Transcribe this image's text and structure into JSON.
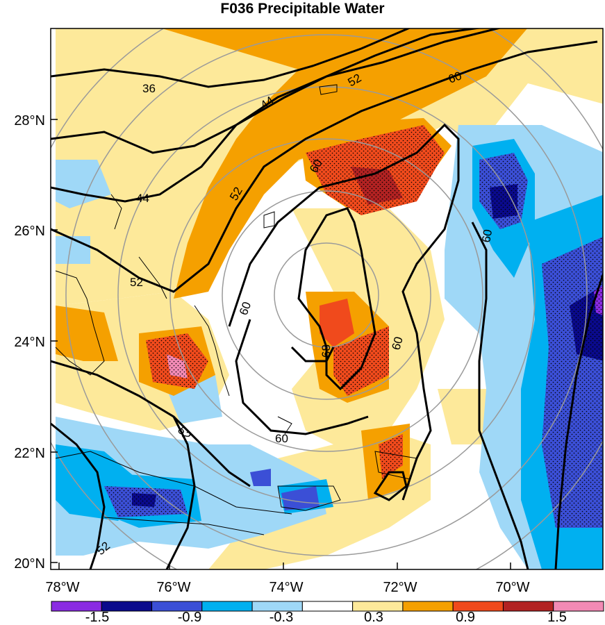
{
  "title": "F036 Precipitable Water",
  "map": {
    "latitude_labels": [
      "28°N",
      "26°N",
      "24°N",
      "22°N",
      "20°N"
    ],
    "longitude_labels": [
      "78°W",
      "76°W",
      "74°W",
      "72°W",
      "70°W"
    ],
    "contour_labels": [
      "36",
      "44",
      "52",
      "60",
      "44",
      "52",
      "60",
      "60",
      "60",
      "68",
      "60",
      "60",
      "52",
      "52",
      "52"
    ],
    "range_rings": "concentric gray circles centered near 24.9°N 73.8°W"
  },
  "colorbar": {
    "labels": [
      "-1.5",
      "-0.9",
      "-0.3",
      "0.3",
      "0.9",
      "1.5"
    ],
    "colors": [
      "#8a2be2",
      "#0a0a8c",
      "#3b4fd6",
      "#00b0f0",
      "#9fd8f7",
      "#ffffff",
      "#fde99a",
      "#f5a000",
      "#f04a1c",
      "#b22222",
      "#f28ab5"
    ]
  }
}
